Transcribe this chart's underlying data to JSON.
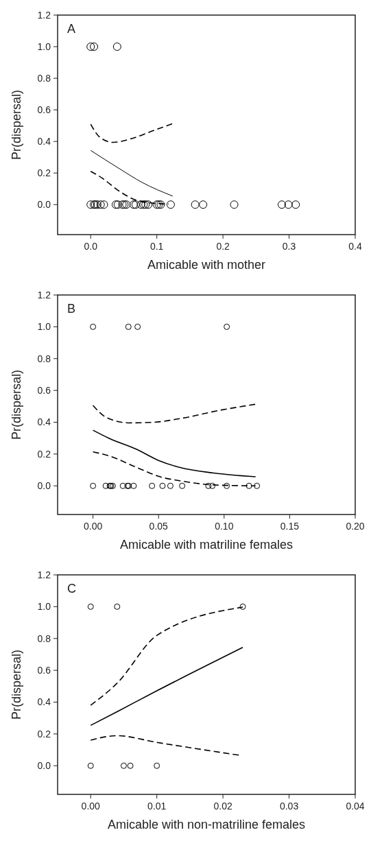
{
  "chart_data": [
    {
      "type": "scatter",
      "annotations": [
        "A"
      ],
      "xlabel": "Amicable with mother",
      "ylabel": "Pr(dispersal)",
      "grid": false,
      "xlim": [
        -0.05,
        0.4
      ],
      "xticks": [
        {
          "value": 0,
          "label": "0.0"
        },
        {
          "value": 0.1,
          "label": "0.1"
        },
        {
          "value": 0.2,
          "label": "0.2"
        },
        {
          "value": 0.3,
          "label": "0.3"
        },
        {
          "value": 0.4,
          "label": "0.4"
        }
      ],
      "ylim": [
        -0.19,
        1.2
      ],
      "yticks": [
        {
          "value": 0,
          "label": "0.0"
        },
        {
          "value": 0.2,
          "label": "0.2"
        },
        {
          "value": 0.4,
          "label": "0.4"
        },
        {
          "value": 0.6,
          "label": "0.6"
        },
        {
          "value": 0.8,
          "label": "0.8"
        },
        {
          "value": 1,
          "label": "1.0"
        },
        {
          "value": 1.2,
          "label": "1.2"
        }
      ],
      "series": [
        {
          "marker": "circle",
          "color": "#000000",
          "x": [
            0,
            0.005,
            0.04,
            0,
            0.005,
            0.007,
            0.01,
            0.015,
            0.02,
            0.038,
            0.041,
            0.048,
            0.051,
            0.054,
            0.065,
            0.068,
            0.076,
            0.08,
            0.083,
            0.087,
            0.1,
            0.103,
            0.106,
            0.121,
            0.158,
            0.17,
            0.217,
            0.289,
            0.299,
            0.31
          ],
          "values": [
            1,
            1,
            1,
            0,
            0,
            0,
            0,
            0,
            0,
            0,
            0,
            0,
            0,
            0,
            0,
            0,
            0,
            0,
            0,
            0,
            0,
            0,
            0,
            0,
            0,
            0,
            0,
            0,
            0,
            0
          ]
        },
        {
          "type": "line",
          "line_style": "solid",
          "color": "#000000",
          "x": [
            0,
            0.044,
            0.078,
            0.124
          ],
          "values": [
            0.343,
            0.226,
            0.14,
            0.054
          ]
        },
        {
          "type": "line",
          "line_style": "dashed",
          "color": "#000000",
          "x": [
            0,
            0.014,
            0.034,
            0.061,
            0.095,
            0.125
          ],
          "values": [
            0.509,
            0.426,
            0.394,
            0.417,
            0.469,
            0.514
          ]
        },
        {
          "type": "line",
          "line_style": "dashed",
          "color": "#000000",
          "x": [
            0,
            0.017,
            0.044,
            0.068,
            0.095,
            0.118
          ],
          "values": [
            0.211,
            0.169,
            0.083,
            0.029,
            0.009,
            0.003
          ]
        }
      ]
    },
    {
      "type": "scatter",
      "annotations": [
        "B"
      ],
      "xlabel": "Amicable with matriline females",
      "ylabel": "Pr(dispersal)",
      "grid": false,
      "xlim": [
        -0.027,
        0.2
      ],
      "xticks": [
        {
          "value": 0,
          "label": "0.00"
        },
        {
          "value": 0.05,
          "label": "0.05"
        },
        {
          "value": 0.1,
          "label": "0.10"
        },
        {
          "value": 0.15,
          "label": "0.15"
        },
        {
          "value": 0.2,
          "label": "0.20"
        }
      ],
      "ylim": [
        -0.18,
        1.2
      ],
      "yticks": [
        {
          "value": 0,
          "label": "0.0"
        },
        {
          "value": 0.2,
          "label": "0.2"
        },
        {
          "value": 0.4,
          "label": "0.4"
        },
        {
          "value": 0.6,
          "label": "0.6"
        },
        {
          "value": 0.8,
          "label": "0.8"
        },
        {
          "value": 1,
          "label": "1.0"
        },
        {
          "value": 1.2,
          "label": "1.2"
        }
      ],
      "series": [
        {
          "marker": "circle",
          "color": "#000000",
          "x": [
            0,
            0.027,
            0.034,
            0.102,
            0,
            0.0097,
            0.0128,
            0.0137,
            0.015,
            0.0228,
            0.0263,
            0.0272,
            0.031,
            0.045,
            0.053,
            0.059,
            0.068,
            0.088,
            0.091,
            0.102,
            0.119,
            0.125
          ],
          "values": [
            1,
            1,
            1,
            1,
            0,
            0,
            0,
            0,
            0,
            0,
            0,
            0,
            0,
            0,
            0,
            0,
            0,
            0,
            0,
            0,
            0,
            0
          ]
        },
        {
          "type": "line",
          "line_style": "solid",
          "color": "#000000",
          "x": [
            0,
            0.012,
            0.033,
            0.05,
            0.067,
            0.092,
            0.124
          ],
          "values": [
            0.35,
            0.3,
            0.231,
            0.16,
            0.114,
            0.081,
            0.057
          ]
        },
        {
          "type": "line",
          "line_style": "dashed",
          "color": "#000000",
          "x": [
            0,
            0.01,
            0.0275,
            0.0465,
            0.067,
            0.098,
            0.124
          ],
          "values": [
            0.506,
            0.431,
            0.396,
            0.4,
            0.424,
            0.477,
            0.513
          ]
        },
        {
          "type": "line",
          "line_style": "dashed",
          "color": "#000000",
          "x": [
            0,
            0.012,
            0.033,
            0.05,
            0.067,
            0.092,
            0.124
          ],
          "values": [
            0.214,
            0.189,
            0.117,
            0.06,
            0.031,
            0.006,
            0
          ]
        }
      ]
    },
    {
      "type": "scatter",
      "annotations": [
        "C"
      ],
      "xlabel": "Amicable with non-matriline females",
      "ylabel": "Pr(dispersal)",
      "grid": false,
      "xlim": [
        -0.005,
        0.04
      ],
      "xticks": [
        {
          "value": 0,
          "label": "0.00"
        },
        {
          "value": 0.01,
          "label": "0.01"
        },
        {
          "value": 0.02,
          "label": "0.02"
        },
        {
          "value": 0.03,
          "label": "0.03"
        },
        {
          "value": 0.04,
          "label": "0.04"
        }
      ],
      "ylim": [
        -0.18,
        1.2
      ],
      "yticks": [
        {
          "value": 0,
          "label": "0.0"
        },
        {
          "value": 0.2,
          "label": "0.2"
        },
        {
          "value": 0.4,
          "label": "0.4"
        },
        {
          "value": 0.6,
          "label": "0.6"
        },
        {
          "value": 0.8,
          "label": "0.8"
        },
        {
          "value": 1,
          "label": "1.0"
        },
        {
          "value": 1.2,
          "label": "1.2"
        }
      ],
      "series": [
        {
          "marker": "circle",
          "color": "#000000",
          "x": [
            0,
            0.004,
            0.023,
            0,
            0.005,
            0.006,
            0.01
          ],
          "values": [
            1,
            1,
            1,
            0,
            0,
            0,
            0
          ]
        },
        {
          "type": "line",
          "line_style": "solid",
          "color": "#000000",
          "x": [
            0,
            0.004,
            0.01,
            0.023
          ],
          "values": [
            0.254,
            0.34,
            0.471,
            0.744
          ]
        },
        {
          "type": "line",
          "line_style": "dashed",
          "color": "#000000",
          "x": [
            0,
            0.004,
            0.01,
            0.023
          ],
          "values": [
            0.38,
            0.519,
            0.819,
            0.997
          ]
        },
        {
          "type": "line",
          "line_style": "dashed",
          "color": "#000000",
          "x": [
            0,
            0.004,
            0.01,
            0.0225
          ],
          "values": [
            0.161,
            0.189,
            0.147,
            0.066
          ]
        }
      ]
    }
  ]
}
